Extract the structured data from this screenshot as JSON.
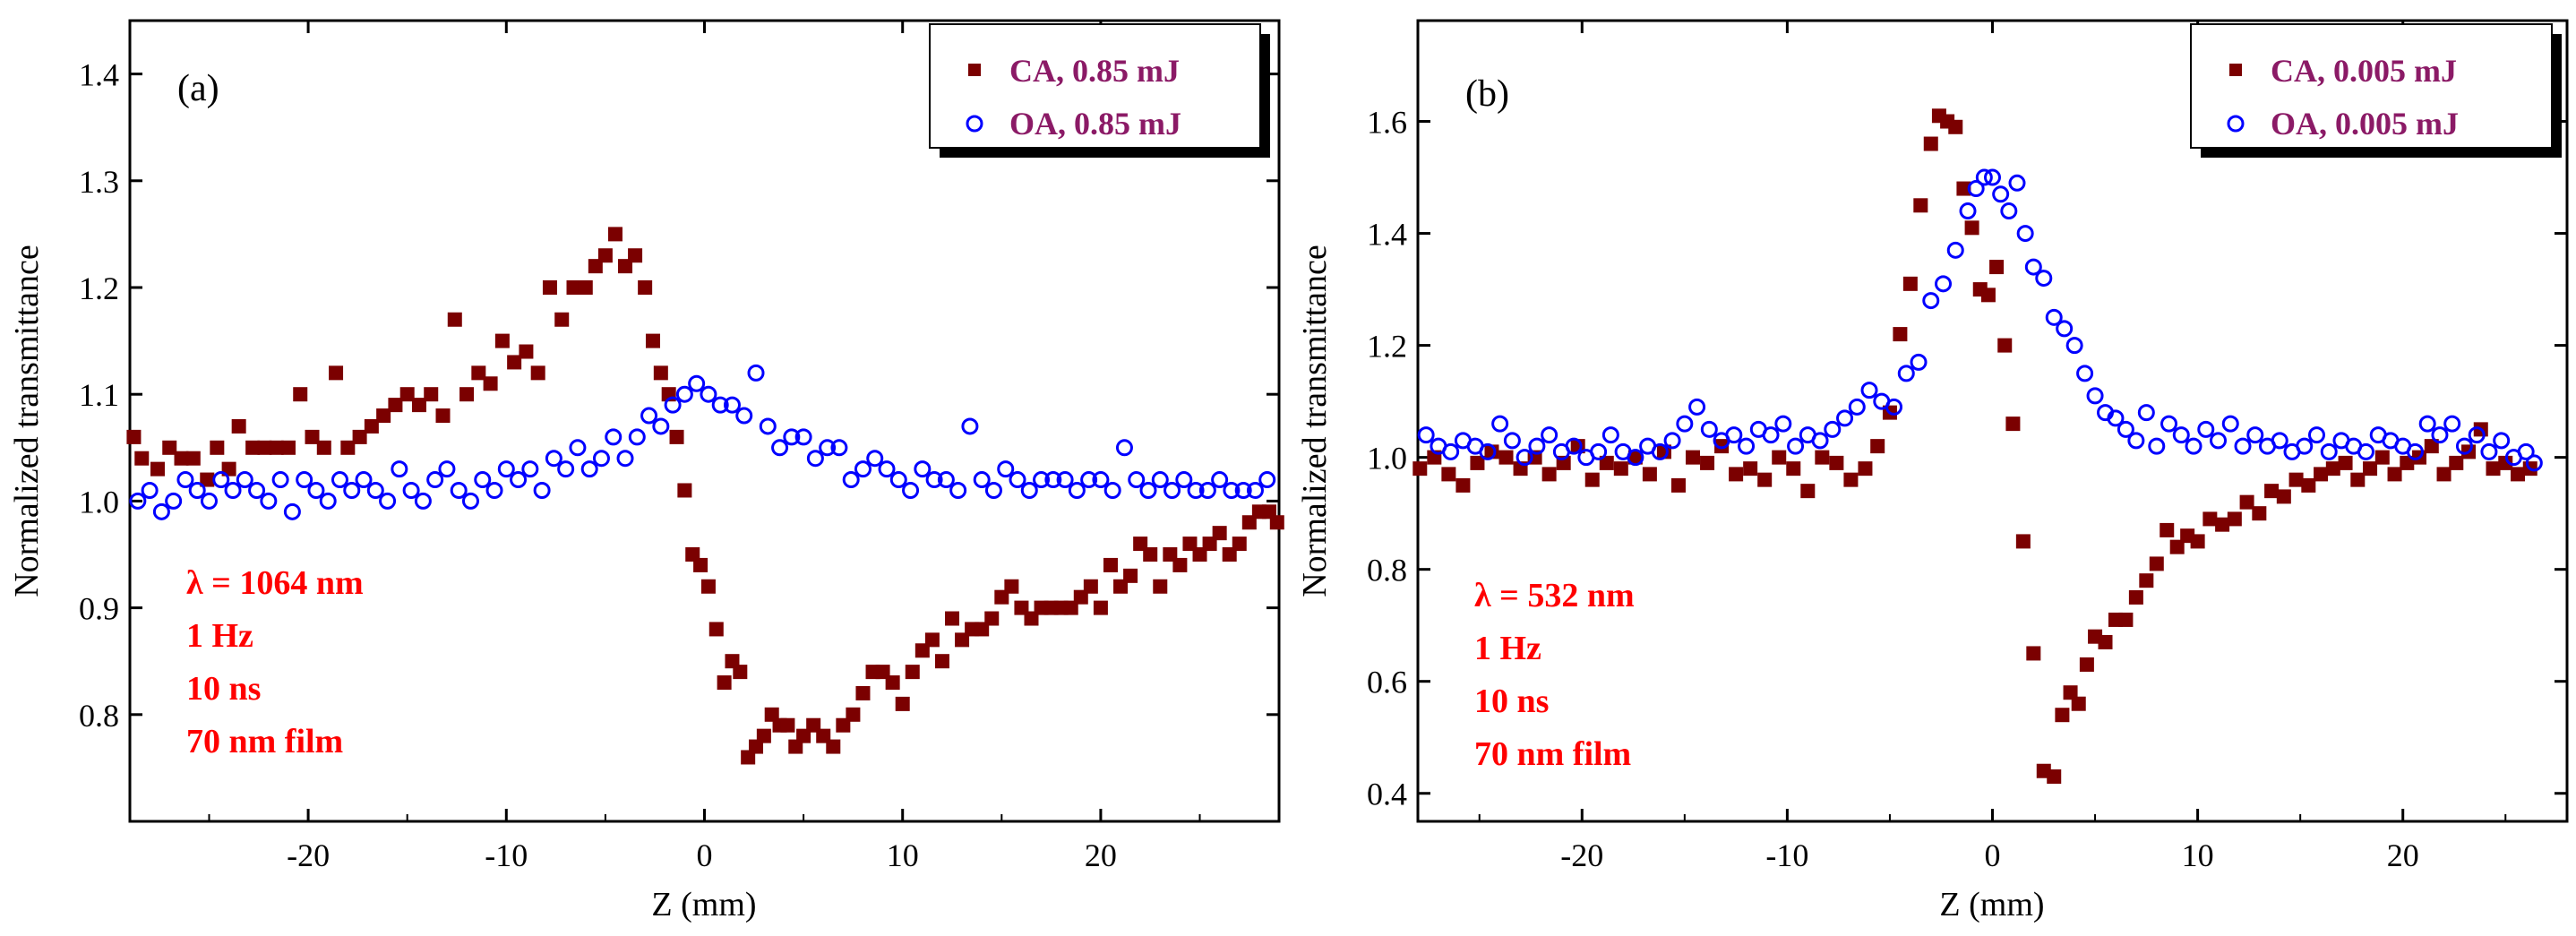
{
  "chart_data": [
    {
      "type": "scatter",
      "panel_label": "(a)",
      "xlabel": "Z (mm)",
      "ylabel": "Normalized transmittance",
      "xlim": [
        -29,
        29
      ],
      "ylim": [
        0.7,
        1.45
      ],
      "xticks": [
        -20,
        -10,
        0,
        10,
        20
      ],
      "xtick_labels": [
        "-20",
        "-10",
        "0",
        "10",
        "20"
      ],
      "yticks": [
        0.8,
        0.9,
        1.0,
        1.1,
        1.2,
        1.3,
        1.4
      ],
      "ytick_labels": [
        "0.8",
        "0.9",
        "1.0",
        "1.1",
        "1.2",
        "1.3",
        "1.4"
      ],
      "legend_position": "top-right",
      "annotations": [
        "λ = 1064 nm",
        "1 Hz",
        "10 ns",
        "70 nm film"
      ],
      "annotation_color": "#ff0000",
      "series": [
        {
          "name": "CA, 0.85 mJ",
          "marker": "filled-square",
          "color": "#7b0000",
          "x": [
            -28.8,
            -28.4,
            -27.6,
            -27.0,
            -26.4,
            -25.8,
            -25.1,
            -24.6,
            -24.0,
            -23.5,
            -22.8,
            -22.2,
            -21.6,
            -21.0,
            -20.4,
            -19.8,
            -19.2,
            -18.6,
            -18.0,
            -17.4,
            -16.8,
            -16.2,
            -15.6,
            -15.0,
            -14.4,
            -13.8,
            -13.2,
            -12.6,
            -12.0,
            -11.4,
            -10.8,
            -10.2,
            -9.6,
            -9.0,
            -8.4,
            -7.8,
            -7.2,
            -6.6,
            -6.0,
            -5.5,
            -5.0,
            -4.5,
            -4.0,
            -3.5,
            -3.0,
            -2.6,
            -2.2,
            -1.8,
            -1.4,
            -1.0,
            -0.6,
            -0.2,
            0.2,
            0.6,
            1.0,
            1.4,
            1.8,
            2.2,
            2.6,
            3.0,
            3.4,
            3.8,
            4.2,
            4.6,
            5.0,
            5.5,
            6.0,
            6.5,
            7.0,
            7.5,
            8.0,
            8.5,
            9.0,
            9.5,
            10.0,
            10.5,
            11.0,
            11.5,
            12.0,
            12.5,
            13.0,
            13.5,
            14.0,
            14.5,
            15.0,
            15.5,
            16.0,
            16.5,
            17.0,
            17.5,
            18.0,
            18.5,
            19.0,
            19.5,
            20.0,
            20.5,
            21.0,
            21.5,
            22.0,
            22.5,
            23.0,
            23.5,
            24.0,
            24.5,
            25.0,
            25.5,
            26.0,
            26.5,
            27.0,
            27.5,
            28.0,
            28.5,
            28.9
          ],
          "y": [
            1.06,
            1.04,
            1.03,
            1.05,
            1.04,
            1.04,
            1.02,
            1.05,
            1.03,
            1.07,
            1.05,
            1.05,
            1.05,
            1.05,
            1.1,
            1.06,
            1.05,
            1.12,
            1.05,
            1.06,
            1.07,
            1.08,
            1.09,
            1.1,
            1.09,
            1.1,
            1.08,
            1.17,
            1.1,
            1.12,
            1.11,
            1.15,
            1.13,
            1.14,
            1.12,
            1.2,
            1.17,
            1.2,
            1.2,
            1.22,
            1.23,
            1.25,
            1.22,
            1.23,
            1.2,
            1.15,
            1.12,
            1.1,
            1.06,
            1.01,
            0.95,
            0.94,
            0.92,
            0.88,
            0.83,
            0.85,
            0.84,
            0.76,
            0.77,
            0.78,
            0.8,
            0.79,
            0.79,
            0.77,
            0.78,
            0.79,
            0.78,
            0.77,
            0.79,
            0.8,
            0.82,
            0.84,
            0.84,
            0.83,
            0.81,
            0.84,
            0.86,
            0.87,
            0.85,
            0.89,
            0.87,
            0.88,
            0.88,
            0.89,
            0.91,
            0.92,
            0.9,
            0.89,
            0.9,
            0.9,
            0.9,
            0.9,
            0.91,
            0.92,
            0.9,
            0.94,
            0.92,
            0.93,
            0.96,
            0.95,
            0.92,
            0.95,
            0.94,
            0.96,
            0.95,
            0.96,
            0.97,
            0.95,
            0.96,
            0.98,
            0.99,
            0.99,
            0.98
          ],
          "y_note": "values estimated from gridlines"
        },
        {
          "name": "OA, 0.85 mJ",
          "marker": "open-circle",
          "color": "#0000ff",
          "x": [
            -28.6,
            -28.0,
            -27.4,
            -26.8,
            -26.2,
            -25.6,
            -25.0,
            -24.4,
            -23.8,
            -23.2,
            -22.6,
            -22.0,
            -21.4,
            -20.8,
            -20.2,
            -19.6,
            -19.0,
            -18.4,
            -17.8,
            -17.2,
            -16.6,
            -16.0,
            -15.4,
            -14.8,
            -14.2,
            -13.6,
            -13.0,
            -12.4,
            -11.8,
            -11.2,
            -10.6,
            -10.0,
            -9.4,
            -8.8,
            -8.2,
            -7.6,
            -7.0,
            -6.4,
            -5.8,
            -5.2,
            -4.6,
            -4.0,
            -3.4,
            -2.8,
            -2.2,
            -1.6,
            -1.0,
            -0.4,
            0.2,
            0.8,
            1.4,
            2.0,
            2.6,
            3.2,
            3.8,
            4.4,
            5.0,
            5.6,
            6.2,
            6.8,
            7.4,
            8.0,
            8.6,
            9.2,
            9.8,
            10.4,
            11.0,
            11.6,
            12.2,
            12.8,
            13.4,
            14.0,
            14.6,
            15.2,
            15.8,
            16.4,
            17.0,
            17.6,
            18.2,
            18.8,
            19.4,
            20.0,
            20.6,
            21.2,
            21.8,
            22.4,
            23.0,
            23.6,
            24.2,
            24.8,
            25.4,
            26.0,
            26.6,
            27.2,
            27.8,
            28.4
          ],
          "y": [
            1.0,
            1.01,
            0.99,
            1.0,
            1.02,
            1.01,
            1.0,
            1.02,
            1.01,
            1.02,
            1.01,
            1.0,
            1.02,
            0.99,
            1.02,
            1.01,
            1.0,
            1.02,
            1.01,
            1.02,
            1.01,
            1.0,
            1.03,
            1.01,
            1.0,
            1.02,
            1.03,
            1.01,
            1.0,
            1.02,
            1.01,
            1.03,
            1.02,
            1.03,
            1.01,
            1.04,
            1.03,
            1.05,
            1.03,
            1.04,
            1.06,
            1.04,
            1.06,
            1.08,
            1.07,
            1.09,
            1.1,
            1.11,
            1.1,
            1.09,
            1.09,
            1.08,
            1.12,
            1.07,
            1.05,
            1.06,
            1.06,
            1.04,
            1.05,
            1.05,
            1.02,
            1.03,
            1.04,
            1.03,
            1.02,
            1.01,
            1.03,
            1.02,
            1.02,
            1.01,
            1.07,
            1.02,
            1.01,
            1.03,
            1.02,
            1.01,
            1.02,
            1.02,
            1.02,
            1.01,
            1.02,
            1.02,
            1.01,
            1.05,
            1.02,
            1.01,
            1.02,
            1.01,
            1.02,
            1.01,
            1.01,
            1.02,
            1.01,
            1.01,
            1.01,
            1.02
          ],
          "y_note": "values estimated from gridlines"
        }
      ]
    },
    {
      "type": "scatter",
      "panel_label": "(b)",
      "xlabel": "Z (mm)",
      "ylabel": "Normalized transmittance",
      "xlim": [
        -28,
        28
      ],
      "ylim": [
        0.35,
        1.78
      ],
      "xticks": [
        -20,
        -10,
        0,
        10,
        20
      ],
      "xtick_labels": [
        "-20",
        "-10",
        "0",
        "10",
        "20"
      ],
      "yticks": [
        0.4,
        0.6,
        0.8,
        1.0,
        1.2,
        1.4,
        1.6
      ],
      "ytick_labels": [
        "0.4",
        "0.6",
        "0.8",
        "1.0",
        "1.2",
        "1.4",
        "1.6"
      ],
      "legend_position": "top-right",
      "annotations": [
        "λ = 532 nm",
        "1 Hz",
        "10 ns",
        "70 nm film"
      ],
      "annotation_color": "#ff0000",
      "series": [
        {
          "name": "CA, 0.005 mJ",
          "marker": "filled-square",
          "color": "#7b0000",
          "x": [
            -27.9,
            -27.2,
            -26.5,
            -25.8,
            -25.1,
            -24.4,
            -23.7,
            -23.0,
            -22.3,
            -21.6,
            -20.9,
            -20.2,
            -19.5,
            -18.8,
            -18.1,
            -17.4,
            -16.7,
            -16.0,
            -15.3,
            -14.6,
            -13.9,
            -13.2,
            -12.5,
            -11.8,
            -11.1,
            -10.4,
            -9.7,
            -9.0,
            -8.3,
            -7.6,
            -6.9,
            -6.2,
            -5.6,
            -5.0,
            -4.5,
            -4.0,
            -3.5,
            -3.0,
            -2.6,
            -2.2,
            -1.8,
            -1.4,
            -1.0,
            -0.6,
            -0.2,
            0.2,
            0.6,
            1.0,
            1.5,
            2.0,
            2.5,
            3.0,
            3.4,
            3.8,
            4.2,
            4.6,
            5.0,
            5.5,
            6.0,
            6.5,
            7.0,
            7.5,
            8.0,
            8.5,
            9.0,
            9.5,
            10.0,
            10.6,
            11.2,
            11.8,
            12.4,
            13.0,
            13.6,
            14.2,
            14.8,
            15.4,
            16.0,
            16.6,
            17.2,
            17.8,
            18.4,
            19.0,
            19.6,
            20.2,
            20.8,
            21.4,
            22.0,
            22.6,
            23.2,
            23.8,
            24.4,
            25.0,
            25.6,
            26.2
          ],
          "y": [
            0.98,
            1.0,
            0.97,
            0.95,
            0.99,
            1.01,
            1.0,
            0.98,
            1.0,
            0.97,
            0.99,
            1.02,
            0.96,
            0.99,
            0.98,
            1.0,
            0.97,
            1.01,
            0.95,
            1.0,
            0.99,
            1.02,
            0.97,
            0.98,
            0.96,
            1.0,
            0.98,
            0.94,
            1.0,
            0.99,
            0.96,
            0.98,
            1.02,
            1.08,
            1.22,
            1.31,
            1.45,
            1.56,
            1.61,
            1.6,
            1.59,
            1.48,
            1.41,
            1.3,
            1.29,
            1.34,
            1.2,
            1.06,
            0.85,
            0.65,
            0.44,
            0.43,
            0.54,
            0.58,
            0.56,
            0.63,
            0.68,
            0.67,
            0.71,
            0.71,
            0.75,
            0.78,
            0.81,
            0.87,
            0.84,
            0.86,
            0.85,
            0.89,
            0.88,
            0.89,
            0.92,
            0.9,
            0.94,
            0.93,
            0.96,
            0.95,
            0.97,
            0.98,
            0.99,
            0.96,
            0.98,
            1.0,
            0.97,
            0.99,
            1.0,
            1.02,
            0.97,
            0.99,
            1.01,
            1.05,
            0.98,
            0.99,
            0.97,
            0.98
          ],
          "y_note": "values estimated from gridlines"
        },
        {
          "name": "OA, 0.005 mJ",
          "marker": "open-circle",
          "color": "#0000ff",
          "x": [
            -27.6,
            -27.0,
            -26.4,
            -25.8,
            -25.2,
            -24.6,
            -24.0,
            -23.4,
            -22.8,
            -22.2,
            -21.6,
            -21.0,
            -20.4,
            -19.8,
            -19.2,
            -18.6,
            -18.0,
            -17.4,
            -16.8,
            -16.2,
            -15.6,
            -15.0,
            -14.4,
            -13.8,
            -13.2,
            -12.6,
            -12.0,
            -11.4,
            -10.8,
            -10.2,
            -9.6,
            -9.0,
            -8.4,
            -7.8,
            -7.2,
            -6.6,
            -6.0,
            -5.4,
            -4.8,
            -4.2,
            -3.6,
            -3.0,
            -2.4,
            -1.8,
            -1.2,
            -0.8,
            -0.4,
            0.0,
            0.4,
            0.8,
            1.2,
            1.6,
            2.0,
            2.5,
            3.0,
            3.5,
            4.0,
            4.5,
            5.0,
            5.5,
            6.0,
            6.5,
            7.0,
            7.5,
            8.0,
            8.6,
            9.2,
            9.8,
            10.4,
            11.0,
            11.6,
            12.2,
            12.8,
            13.4,
            14.0,
            14.6,
            15.2,
            15.8,
            16.4,
            17.0,
            17.6,
            18.2,
            18.8,
            19.4,
            20.0,
            20.6,
            21.2,
            21.8,
            22.4,
            23.0,
            23.6,
            24.2,
            24.8,
            25.4,
            26.0,
            26.4
          ],
          "y": [
            1.04,
            1.02,
            1.01,
            1.03,
            1.02,
            1.01,
            1.06,
            1.03,
            1.0,
            1.02,
            1.04,
            1.01,
            1.02,
            1.0,
            1.01,
            1.04,
            1.01,
            1.0,
            1.02,
            1.01,
            1.03,
            1.06,
            1.09,
            1.05,
            1.03,
            1.04,
            1.02,
            1.05,
            1.04,
            1.06,
            1.02,
            1.04,
            1.03,
            1.05,
            1.07,
            1.09,
            1.12,
            1.1,
            1.09,
            1.15,
            1.17,
            1.28,
            1.31,
            1.37,
            1.44,
            1.48,
            1.5,
            1.5,
            1.47,
            1.44,
            1.49,
            1.4,
            1.34,
            1.32,
            1.25,
            1.23,
            1.2,
            1.15,
            1.11,
            1.08,
            1.07,
            1.05,
            1.03,
            1.08,
            1.02,
            1.06,
            1.04,
            1.02,
            1.05,
            1.03,
            1.06,
            1.02,
            1.04,
            1.02,
            1.03,
            1.01,
            1.02,
            1.04,
            1.01,
            1.03,
            1.02,
            1.01,
            1.04,
            1.03,
            1.02,
            1.01,
            1.06,
            1.04,
            1.06,
            1.02,
            1.04,
            1.01,
            1.03,
            1.0,
            1.01,
            0.99
          ],
          "y_note": "values estimated from gridlines"
        }
      ]
    }
  ],
  "style": {
    "ca_color": "#7b0000",
    "oa_color": "#0000ff",
    "legend_text_color": "#8b1a66",
    "annotation_color": "#ff0000",
    "axis_color": "#000000"
  }
}
